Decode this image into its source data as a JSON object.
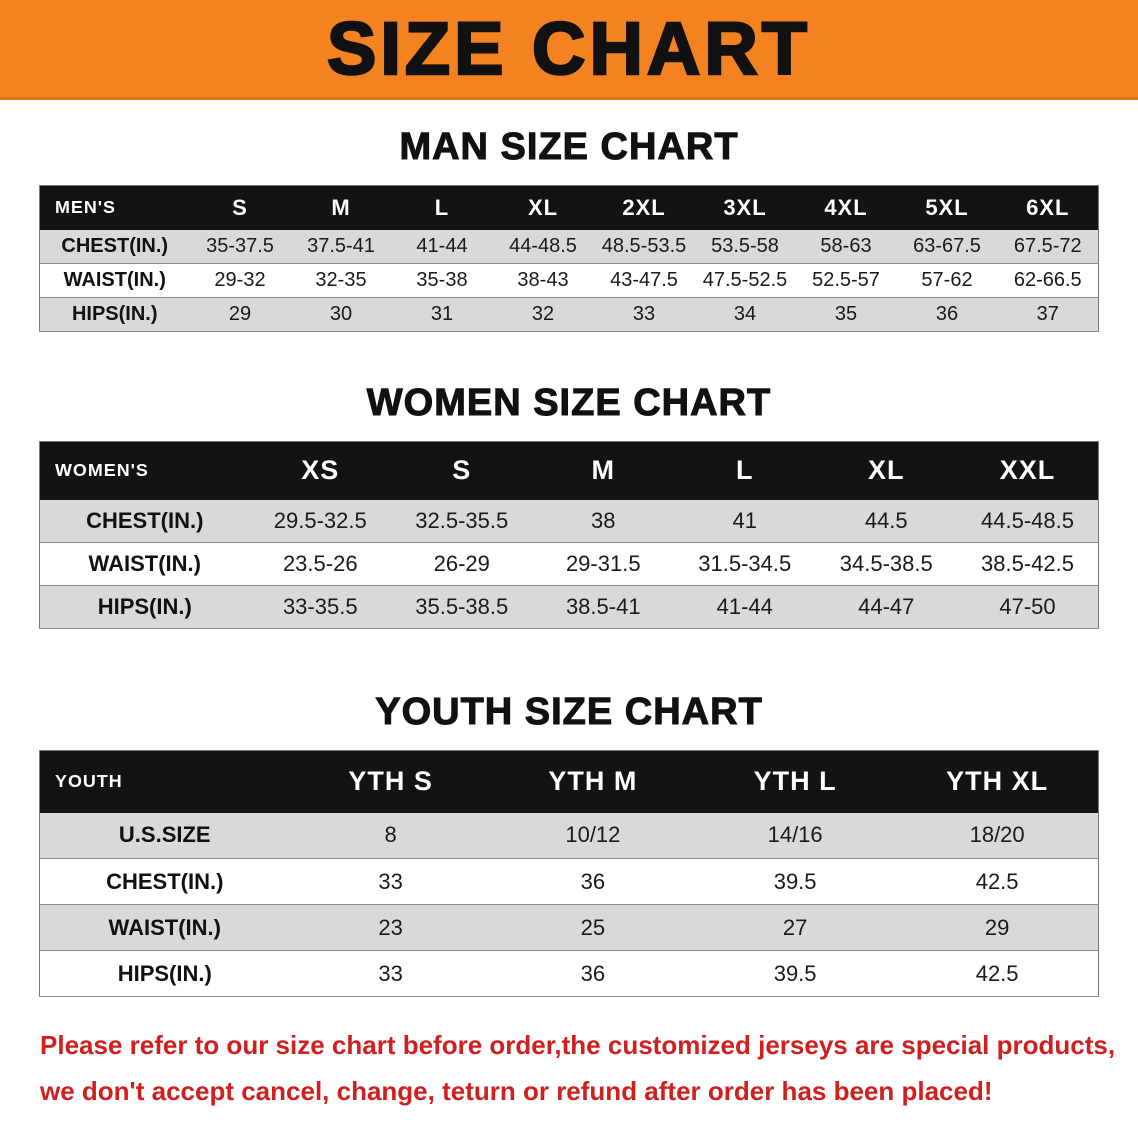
{
  "colors": {
    "banner_bg": "#f58220",
    "banner_text": "#111111",
    "header_bg": "#131313",
    "header_text": "#ffffff",
    "row_shaded": "#d9d9d9",
    "footer_text": "#d01f1f"
  },
  "banner": {
    "title": "SIZE CHART"
  },
  "sections": [
    {
      "heading": "MAN SIZE CHART",
      "table": {
        "header": [
          "MEN'S",
          "S",
          "M",
          "L",
          "XL",
          "2XL",
          "3XL",
          "4XL",
          "5XL",
          "6XL"
        ],
        "rows": [
          [
            "CHEST(IN.)",
            "35-37.5",
            "37.5-41",
            "41-44",
            "44-48.5",
            "48.5-53.5",
            "53.5-58",
            "58-63",
            "63-67.5",
            "67.5-72"
          ],
          [
            "WAIST(IN.)",
            "29-32",
            "32-35",
            "35-38",
            "38-43",
            "43-47.5",
            "47.5-52.5",
            "52.5-57",
            "57-62",
            "62-66.5"
          ],
          [
            "HIPS(IN.)",
            "29",
            "30",
            "31",
            "32",
            "33",
            "34",
            "35",
            "36",
            "37"
          ]
        ]
      }
    },
    {
      "heading": "WOMEN SIZE CHART",
      "table": {
        "header": [
          "WOMEN'S",
          "XS",
          "S",
          "M",
          "L",
          "XL",
          "XXL"
        ],
        "rows": [
          [
            "CHEST(IN.)",
            "29.5-32.5",
            "32.5-35.5",
            "38",
            "41",
            "44.5",
            "44.5-48.5"
          ],
          [
            "WAIST(IN.)",
            "23.5-26",
            "26-29",
            "29-31.5",
            "31.5-34.5",
            "34.5-38.5",
            "38.5-42.5"
          ],
          [
            "HIPS(IN.)",
            "33-35.5",
            "35.5-38.5",
            "38.5-41",
            "41-44",
            "44-47",
            "47-50"
          ]
        ]
      }
    },
    {
      "heading": "YOUTH SIZE CHART",
      "table": {
        "header": [
          "YOUTH",
          "YTH S",
          "YTH M",
          "YTH L",
          "YTH XL"
        ],
        "rows": [
          [
            "U.S.SIZE",
            "8",
            "10/12",
            "14/16",
            "18/20"
          ],
          [
            "CHEST(IN.)",
            "33",
            "36",
            "39.5",
            "42.5"
          ],
          [
            "WAIST(IN.)",
            "23",
            "25",
            "27",
            "29"
          ],
          [
            "HIPS(IN.)",
            "33",
            "36",
            "39.5",
            "42.5"
          ]
        ]
      }
    }
  ],
  "footer": {
    "line1": "Please refer to our size chart before order,the customized jerseys are special products,",
    "line2": "we don't accept cancel, change, teturn or refund after order has been placed!"
  }
}
